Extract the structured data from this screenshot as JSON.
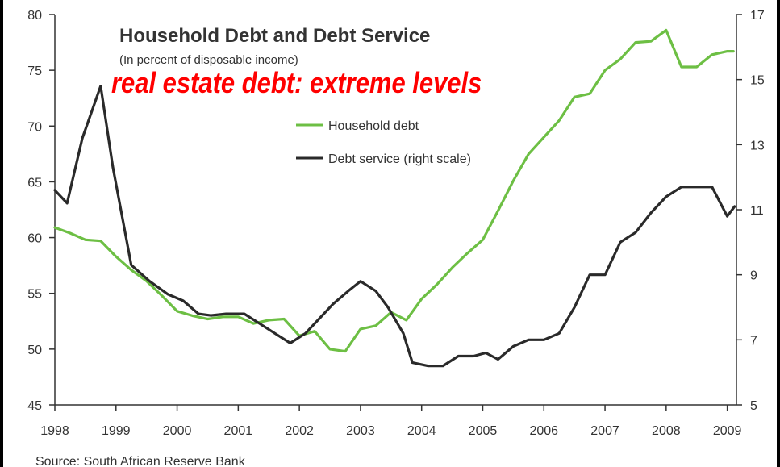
{
  "chart_data": {
    "type": "line",
    "title": "Household Debt and Debt Service",
    "subtitle": "(In percent of disposable income)",
    "annotation": "real estate debt: extreme levels",
    "source": "Source: South African Reserve Bank",
    "x_ticks": [
      "1998",
      "1999",
      "2000",
      "2001",
      "2002",
      "2003",
      "2004",
      "2005",
      "2006",
      "2007",
      "2008",
      "2009"
    ],
    "x_range": [
      1998,
      2009.15
    ],
    "y_left": {
      "ticks": [
        "45",
        "50",
        "55",
        "60",
        "65",
        "70",
        "75",
        "80"
      ],
      "range": [
        45,
        80
      ]
    },
    "y_right": {
      "ticks": [
        "5",
        "7",
        "9",
        "11",
        "13",
        "15",
        "17"
      ],
      "range": [
        5,
        17
      ]
    },
    "legend_position": "upper-center",
    "grid": false,
    "series": [
      {
        "name": "Household debt",
        "axis": "left",
        "color": "#6dbf44",
        "x": [
          1998.0,
          1998.25,
          1998.5,
          1998.75,
          1999.0,
          1999.25,
          1999.5,
          1999.75,
          2000.0,
          2000.25,
          2000.5,
          2000.75,
          2001.0,
          2001.25,
          2001.5,
          2001.75,
          2002.0,
          2002.25,
          2002.5,
          2002.75,
          2003.0,
          2003.25,
          2003.5,
          2003.75,
          2004.0,
          2004.25,
          2004.5,
          2004.75,
          2005.0,
          2005.25,
          2005.5,
          2005.75,
          2006.0,
          2006.25,
          2006.5,
          2006.75,
          2007.0,
          2007.25,
          2007.5,
          2007.75,
          2008.0,
          2008.25,
          2008.5,
          2008.75,
          2009.0,
          2009.1
        ],
        "values": [
          60.9,
          60.4,
          59.8,
          59.7,
          58.3,
          57.1,
          56.1,
          54.8,
          53.4,
          53.0,
          52.7,
          52.9,
          52.9,
          52.3,
          52.6,
          52.7,
          51.2,
          51.6,
          50.0,
          49.8,
          51.8,
          52.1,
          53.3,
          52.6,
          54.5,
          55.8,
          57.3,
          58.6,
          59.8,
          62.4,
          65.1,
          67.5,
          69.0,
          70.5,
          72.6,
          72.9,
          75.0,
          76.0,
          77.5,
          77.6,
          78.6,
          75.3,
          75.3,
          76.4,
          76.7,
          76.7
        ]
      },
      {
        "name": "Debt service (right scale)",
        "axis": "right",
        "color": "#2a2a2a",
        "x": [
          1998.0,
          1998.2,
          1998.45,
          1998.75,
          1998.95,
          1999.25,
          1999.55,
          1999.85,
          2000.1,
          2000.35,
          2000.55,
          2000.8,
          2001.1,
          2001.35,
          2001.6,
          2001.85,
          2002.1,
          2002.3,
          2002.55,
          2002.8,
          2003.0,
          2003.25,
          2003.45,
          2003.7,
          2003.85,
          2004.1,
          2004.35,
          2004.6,
          2004.85,
          2005.05,
          2005.25,
          2005.5,
          2005.75,
          2006.0,
          2006.25,
          2006.5,
          2006.75,
          2007.0,
          2007.25,
          2007.5,
          2007.75,
          2008.0,
          2008.25,
          2008.5,
          2008.75,
          2009.0,
          2009.12
        ],
        "values": [
          11.6,
          11.2,
          13.2,
          14.8,
          12.3,
          9.3,
          8.8,
          8.4,
          8.2,
          7.8,
          7.75,
          7.8,
          7.8,
          7.5,
          7.2,
          6.9,
          7.2,
          7.6,
          8.1,
          8.5,
          8.8,
          8.5,
          8.0,
          7.2,
          6.3,
          6.2,
          6.2,
          6.5,
          6.5,
          6.6,
          6.4,
          6.8,
          7.0,
          7.0,
          7.2,
          8.0,
          9.0,
          9.0,
          10.0,
          10.3,
          10.9,
          11.4,
          11.7,
          11.7,
          11.7,
          10.8,
          11.1
        ]
      }
    ]
  }
}
